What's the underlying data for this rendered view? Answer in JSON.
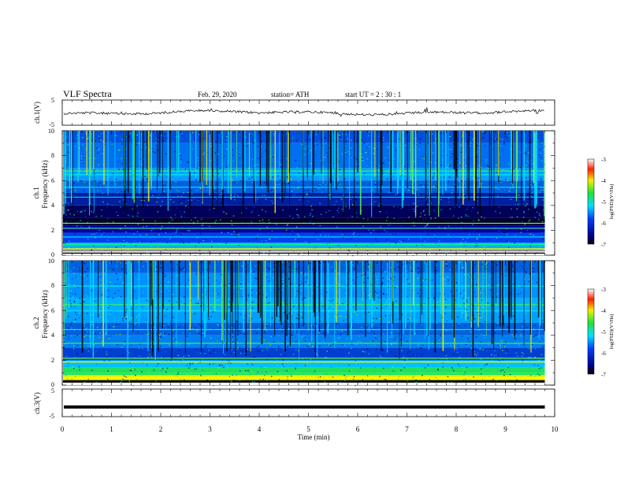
{
  "header": {
    "title": "VLF  Spectra",
    "date": "Feb. 29, 2020",
    "station": "station= ATH",
    "start_ut": "start  UT  =    2  : 30 : 1"
  },
  "chart_data": {
    "type": "heatmap",
    "xlabel": "Time  (min)",
    "x_ticks": [
      "0",
      "1",
      "2",
      "3",
      "4",
      "5",
      "6",
      "7",
      "8",
      "9",
      "10"
    ],
    "xlim": [
      0,
      10
    ],
    "data_end_min": 9.8,
    "panels": [
      {
        "name": "ch1-waveform",
        "ylabel": "ch.1(V)",
        "y_ticks": [
          "5",
          "-5"
        ],
        "ylim": [
          -5,
          5
        ],
        "trace_level": 0.0
      },
      {
        "name": "ch1-spectrogram",
        "ylabel_top": "ch.1",
        "ylabel": "Frequency  (kHz)",
        "y_ticks": [
          "0",
          "2",
          "4",
          "6",
          "8",
          "10"
        ],
        "ylim": [
          0,
          10
        ],
        "colorbar": {
          "label": "log(PSD)(V²/Hz)",
          "ticks": [
            "-3",
            "-4",
            "-5",
            "-6",
            "-7"
          ],
          "range": [
            -7,
            -3
          ]
        }
      },
      {
        "name": "ch2-spectrogram",
        "ylabel_top": "ch.2",
        "ylabel": "Frequency  (kHz)",
        "y_ticks": [
          "0",
          "2",
          "4",
          "6",
          "8",
          "10"
        ],
        "ylim": [
          0,
          10
        ],
        "colorbar": {
          "label": "log(PSD)(V²/Hz)",
          "ticks": [
            "-3",
            "-4",
            "-5",
            "-6",
            "-7"
          ],
          "range": [
            -7,
            -3
          ]
        }
      },
      {
        "name": "ch3-waveform",
        "ylabel": "ch.3(V)",
        "y_ticks": [
          "5",
          "-5"
        ],
        "ylim": [
          -5,
          5
        ],
        "trace_level": -1.5
      }
    ]
  }
}
